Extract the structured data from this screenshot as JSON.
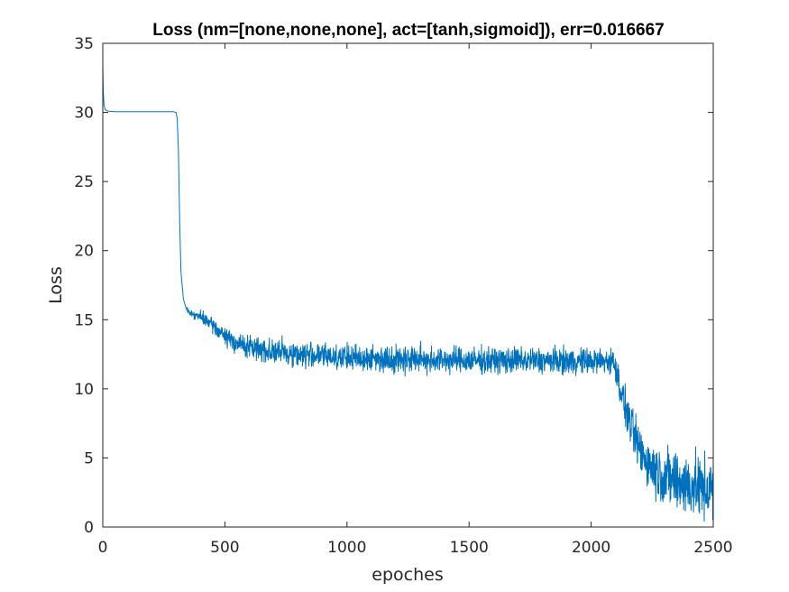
{
  "chart_data": {
    "type": "line",
    "title": "Loss (nm=[none,none,none], act=[tanh,sigmoid]), err=0.016667",
    "xlabel": "epoches",
    "ylabel": "Loss",
    "xlim": [
      0,
      2500
    ],
    "ylim": [
      0,
      35
    ],
    "xticks": [
      0,
      500,
      1000,
      1500,
      2000,
      2500
    ],
    "yticks": [
      0,
      5,
      10,
      15,
      20,
      25,
      30,
      35
    ],
    "grid": false,
    "legend": "none",
    "series": [
      {
        "color": "#0072BD",
        "x": [
          0,
          2,
          5,
          10,
          20,
          50,
          100,
          150,
          200,
          250,
          290,
          300,
          305,
          310,
          315,
          320,
          330,
          340,
          350,
          370,
          400,
          450,
          500,
          550,
          600,
          700,
          800,
          900,
          1000,
          1100,
          1200,
          1300,
          1400,
          1500,
          1600,
          1700,
          1800,
          1900,
          2000,
          2050,
          2090,
          2100,
          2120,
          2150,
          2200,
          2250,
          2300,
          2350,
          2400,
          2450,
          2500
        ],
        "y": [
          33.5,
          31.5,
          30.5,
          30.2,
          30.1,
          30.05,
          30.05,
          30.05,
          30.05,
          30.05,
          30.05,
          30.0,
          29.5,
          27.0,
          22.0,
          18.5,
          16.5,
          15.9,
          15.6,
          15.4,
          15.2,
          14.6,
          13.8,
          13.3,
          13.0,
          12.7,
          12.5,
          12.4,
          12.25,
          12.2,
          12.15,
          12.15,
          12.1,
          12.05,
          12.05,
          12.05,
          12.05,
          12.0,
          12.0,
          12.0,
          12.0,
          11.5,
          10.0,
          8.0,
          5.5,
          4.3,
          3.7,
          3.3,
          3.0,
          2.8,
          2.7
        ],
        "noise": [
          0,
          0,
          0,
          0,
          0,
          0,
          0,
          0,
          0,
          0,
          0,
          0,
          0,
          0,
          0,
          0,
          0,
          0,
          0.1,
          0.15,
          0.2,
          0.25,
          0.3,
          0.35,
          0.4,
          0.45,
          0.45,
          0.45,
          0.45,
          0.45,
          0.45,
          0.5,
          0.45,
          0.45,
          0.45,
          0.45,
          0.45,
          0.45,
          0.45,
          0.45,
          0.45,
          0.5,
          0.6,
          0.7,
          0.8,
          0.9,
          1.0,
          1.1,
          1.1,
          1.1,
          1.1
        ]
      }
    ]
  }
}
